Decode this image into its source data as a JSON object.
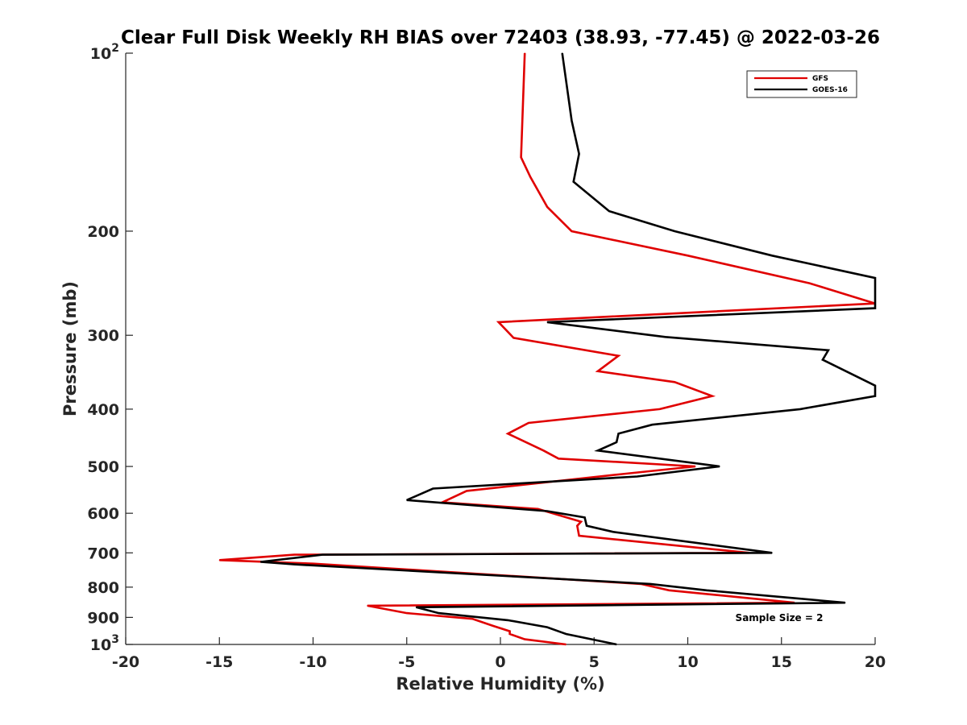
{
  "chart_data": {
    "type": "line",
    "title": "Clear Full Disk Weekly RH BIAS over 72403 (38.93, -77.45) @ 2022-03-26",
    "xlabel": "Relative Humidity (%)",
    "ylabel": "Pressure (mb)",
    "xlim": [
      -20,
      20
    ],
    "ylim": [
      100,
      1000
    ],
    "y_scale": "log",
    "y_reversed": true,
    "grid": false,
    "legend_position": "top-right",
    "annotation": "Sample Size = 2",
    "x_tick_labels": [
      "-20",
      "-15",
      "-10",
      "-5",
      "0",
      "5",
      "10",
      "15",
      "20"
    ],
    "y_ticks": [
      {
        "value": 100,
        "base": "10",
        "exp": "2"
      },
      {
        "value": 200,
        "label": "200"
      },
      {
        "value": 300,
        "label": "300"
      },
      {
        "value": 400,
        "label": "400"
      },
      {
        "value": 500,
        "label": "500"
      },
      {
        "value": 600,
        "label": "600"
      },
      {
        "value": 700,
        "label": "700"
      },
      {
        "value": 800,
        "label": "800"
      },
      {
        "value": 900,
        "label": "900"
      },
      {
        "value": 1000,
        "base": "10",
        "exp": "3"
      }
    ],
    "series": [
      {
        "name": "GFS",
        "color": "#e00000",
        "points": [
          [
            1.3,
            100
          ],
          [
            1.1,
            150
          ],
          [
            1.6,
            162
          ],
          [
            2.5,
            182
          ],
          [
            3.8,
            200
          ],
          [
            10,
            220
          ],
          [
            16.5,
            245
          ],
          [
            20,
            265
          ],
          [
            -0.1,
            285
          ],
          [
            0.7,
            303
          ],
          [
            6.3,
            325
          ],
          [
            5.2,
            345
          ],
          [
            9.3,
            360
          ],
          [
            11.3,
            380
          ],
          [
            8.5,
            400
          ],
          [
            1.5,
            422
          ],
          [
            0.4,
            440
          ],
          [
            2.3,
            470
          ],
          [
            3.1,
            485
          ],
          [
            10.4,
            500
          ],
          [
            6.5,
            515
          ],
          [
            -1.8,
            550
          ],
          [
            -3.1,
            575
          ],
          [
            2.0,
            590
          ],
          [
            4.3,
            620
          ],
          [
            4.1,
            630
          ],
          [
            4.2,
            655
          ],
          [
            13.3,
            700
          ],
          [
            -11.0,
            705
          ],
          [
            -15.0,
            720
          ],
          [
            -10.0,
            730
          ],
          [
            7.5,
            790
          ],
          [
            9.0,
            810
          ],
          [
            15.7,
            850
          ],
          [
            -7.1,
            860
          ],
          [
            -5.0,
            885
          ],
          [
            -1.5,
            905
          ],
          [
            -0.4,
            930
          ],
          [
            0.5,
            950
          ],
          [
            0.5,
            960
          ],
          [
            1.3,
            980
          ],
          [
            3.5,
            1000
          ]
        ]
      },
      {
        "name": "GOES-16",
        "color": "#000000",
        "points": [
          [
            3.3,
            100
          ],
          [
            3.8,
            130
          ],
          [
            4.2,
            148
          ],
          [
            3.9,
            165
          ],
          [
            5.8,
            185
          ],
          [
            9.3,
            200
          ],
          [
            14.5,
            220
          ],
          [
            20,
            240
          ],
          [
            20,
            270
          ],
          [
            2.5,
            285
          ],
          [
            8.8,
            302
          ],
          [
            17.5,
            318
          ],
          [
            17.2,
            330
          ],
          [
            20,
            365
          ],
          [
            20,
            380
          ],
          [
            16,
            400
          ],
          [
            8.1,
            425
          ],
          [
            6.3,
            440
          ],
          [
            6.2,
            455
          ],
          [
            5.2,
            470
          ],
          [
            11.7,
            500
          ],
          [
            7.3,
            520
          ],
          [
            -3.6,
            545
          ],
          [
            -5.0,
            570
          ],
          [
            2.5,
            595
          ],
          [
            4.5,
            610
          ],
          [
            4.6,
            630
          ],
          [
            6.0,
            645
          ],
          [
            14.5,
            700
          ],
          [
            -9.5,
            705
          ],
          [
            -12.8,
            725
          ],
          [
            -11.0,
            732
          ],
          [
            8.0,
            790
          ],
          [
            11.0,
            810
          ],
          [
            18.4,
            850
          ],
          [
            -4.5,
            865
          ],
          [
            -3.3,
            885
          ],
          [
            0.4,
            910
          ],
          [
            2.5,
            935
          ],
          [
            3.3,
            955
          ],
          [
            3.5,
            960
          ],
          [
            6.2,
            1000
          ]
        ]
      }
    ]
  }
}
